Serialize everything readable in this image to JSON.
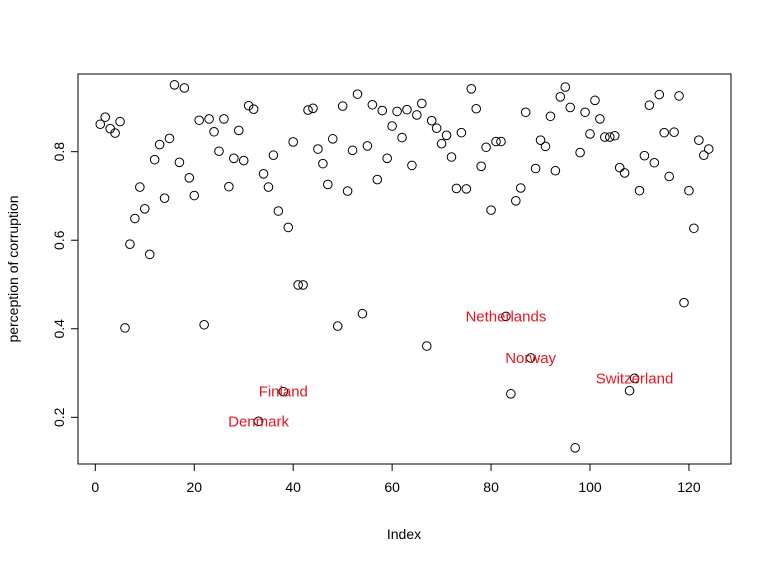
{
  "chart_data": {
    "type": "scatter",
    "xlabel": "Index",
    "ylabel": "perception of corruption",
    "xlim": [
      -3.5,
      128.5
    ],
    "ylim": [
      0.0945,
      0.9755
    ],
    "xticks": [
      0,
      20,
      40,
      60,
      80,
      100,
      120
    ],
    "yticks": [
      0.2,
      0.4,
      0.6,
      0.8
    ],
    "grid": false,
    "point_color": "#000000",
    "annotation_color": "#e8141f",
    "points": [
      {
        "x": 1,
        "y": 0.862
      },
      {
        "x": 2,
        "y": 0.878
      },
      {
        "x": 3,
        "y": 0.852
      },
      {
        "x": 4,
        "y": 0.842
      },
      {
        "x": 5,
        "y": 0.868
      },
      {
        "x": 6,
        "y": 0.402
      },
      {
        "x": 7,
        "y": 0.591
      },
      {
        "x": 8,
        "y": 0.649
      },
      {
        "x": 9,
        "y": 0.72
      },
      {
        "x": 10,
        "y": 0.671
      },
      {
        "x": 11,
        "y": 0.568
      },
      {
        "x": 12,
        "y": 0.782
      },
      {
        "x": 13,
        "y": 0.816
      },
      {
        "x": 14,
        "y": 0.695
      },
      {
        "x": 15,
        "y": 0.83
      },
      {
        "x": 16,
        "y": 0.951
      },
      {
        "x": 17,
        "y": 0.776
      },
      {
        "x": 18,
        "y": 0.944
      },
      {
        "x": 19,
        "y": 0.741
      },
      {
        "x": 20,
        "y": 0.701
      },
      {
        "x": 21,
        "y": 0.871
      },
      {
        "x": 22,
        "y": 0.409
      },
      {
        "x": 23,
        "y": 0.874
      },
      {
        "x": 24,
        "y": 0.845
      },
      {
        "x": 25,
        "y": 0.801
      },
      {
        "x": 26,
        "y": 0.874
      },
      {
        "x": 27,
        "y": 0.721
      },
      {
        "x": 28,
        "y": 0.785
      },
      {
        "x": 29,
        "y": 0.848
      },
      {
        "x": 30,
        "y": 0.78
      },
      {
        "x": 31,
        "y": 0.904
      },
      {
        "x": 32,
        "y": 0.896
      },
      {
        "x": 33,
        "y": 0.191
      },
      {
        "x": 34,
        "y": 0.75
      },
      {
        "x": 35,
        "y": 0.72
      },
      {
        "x": 36,
        "y": 0.792
      },
      {
        "x": 37,
        "y": 0.666
      },
      {
        "x": 38,
        "y": 0.258
      },
      {
        "x": 39,
        "y": 0.629
      },
      {
        "x": 40,
        "y": 0.822
      },
      {
        "x": 41,
        "y": 0.499
      },
      {
        "x": 42,
        "y": 0.499
      },
      {
        "x": 43,
        "y": 0.894
      },
      {
        "x": 44,
        "y": 0.898
      },
      {
        "x": 45,
        "y": 0.806
      },
      {
        "x": 46,
        "y": 0.773
      },
      {
        "x": 47,
        "y": 0.726
      },
      {
        "x": 48,
        "y": 0.829
      },
      {
        "x": 49,
        "y": 0.406
      },
      {
        "x": 50,
        "y": 0.903
      },
      {
        "x": 51,
        "y": 0.711
      },
      {
        "x": 52,
        "y": 0.803
      },
      {
        "x": 53,
        "y": 0.93
      },
      {
        "x": 54,
        "y": 0.434
      },
      {
        "x": 55,
        "y": 0.813
      },
      {
        "x": 56,
        "y": 0.906
      },
      {
        "x": 57,
        "y": 0.737
      },
      {
        "x": 58,
        "y": 0.893
      },
      {
        "x": 59,
        "y": 0.785
      },
      {
        "x": 60,
        "y": 0.858
      },
      {
        "x": 61,
        "y": 0.891
      },
      {
        "x": 62,
        "y": 0.832
      },
      {
        "x": 63,
        "y": 0.895
      },
      {
        "x": 64,
        "y": 0.769
      },
      {
        "x": 65,
        "y": 0.883
      },
      {
        "x": 66,
        "y": 0.909
      },
      {
        "x": 67,
        "y": 0.361
      },
      {
        "x": 68,
        "y": 0.87
      },
      {
        "x": 69,
        "y": 0.853
      },
      {
        "x": 70,
        "y": 0.818
      },
      {
        "x": 71,
        "y": 0.837
      },
      {
        "x": 72,
        "y": 0.788
      },
      {
        "x": 73,
        "y": 0.717
      },
      {
        "x": 74,
        "y": 0.843
      },
      {
        "x": 75,
        "y": 0.716
      },
      {
        "x": 76,
        "y": 0.942
      },
      {
        "x": 77,
        "y": 0.897
      },
      {
        "x": 78,
        "y": 0.767
      },
      {
        "x": 79,
        "y": 0.81
      },
      {
        "x": 80,
        "y": 0.668
      },
      {
        "x": 81,
        "y": 0.823
      },
      {
        "x": 82,
        "y": 0.823
      },
      {
        "x": 83,
        "y": 0.428
      },
      {
        "x": 84,
        "y": 0.253
      },
      {
        "x": 85,
        "y": 0.689
      },
      {
        "x": 86,
        "y": 0.718
      },
      {
        "x": 87,
        "y": 0.889
      },
      {
        "x": 88,
        "y": 0.334
      },
      {
        "x": 89,
        "y": 0.762
      },
      {
        "x": 90,
        "y": 0.826
      },
      {
        "x": 91,
        "y": 0.812
      },
      {
        "x": 92,
        "y": 0.88
      },
      {
        "x": 93,
        "y": 0.757
      },
      {
        "x": 94,
        "y": 0.924
      },
      {
        "x": 95,
        "y": 0.946
      },
      {
        "x": 96,
        "y": 0.9
      },
      {
        "x": 97,
        "y": 0.131
      },
      {
        "x": 98,
        "y": 0.798
      },
      {
        "x": 99,
        "y": 0.889
      },
      {
        "x": 100,
        "y": 0.84
      },
      {
        "x": 101,
        "y": 0.916
      },
      {
        "x": 102,
        "y": 0.874
      },
      {
        "x": 103,
        "y": 0.833
      },
      {
        "x": 104,
        "y": 0.833
      },
      {
        "x": 105,
        "y": 0.836
      },
      {
        "x": 106,
        "y": 0.764
      },
      {
        "x": 107,
        "y": 0.752
      },
      {
        "x": 108,
        "y": 0.26
      },
      {
        "x": 109,
        "y": 0.288
      },
      {
        "x": 110,
        "y": 0.712
      },
      {
        "x": 111,
        "y": 0.791
      },
      {
        "x": 112,
        "y": 0.905
      },
      {
        "x": 113,
        "y": 0.775
      },
      {
        "x": 114,
        "y": 0.929
      },
      {
        "x": 115,
        "y": 0.843
      },
      {
        "x": 116,
        "y": 0.744
      },
      {
        "x": 117,
        "y": 0.844
      },
      {
        "x": 118,
        "y": 0.926
      },
      {
        "x": 119,
        "y": 0.459
      },
      {
        "x": 120,
        "y": 0.712
      },
      {
        "x": 121,
        "y": 0.627
      },
      {
        "x": 122,
        "y": 0.826
      },
      {
        "x": 123,
        "y": 0.792
      },
      {
        "x": 124,
        "y": 0.806
      }
    ],
    "annotations": [
      {
        "label": "Denmark",
        "x": 33,
        "y": 0.191
      },
      {
        "label": "Finland",
        "x": 38,
        "y": 0.258
      },
      {
        "label": "Netherlands",
        "x": 83,
        "y": 0.428
      },
      {
        "label": "Norway",
        "x": 88,
        "y": 0.334
      },
      {
        "label": "Switzerland",
        "x": 109,
        "y": 0.288
      }
    ]
  }
}
